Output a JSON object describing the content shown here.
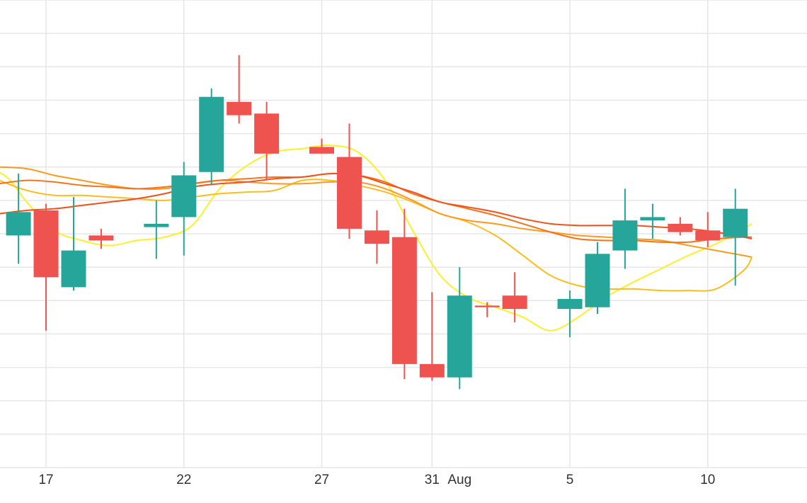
{
  "chart_data": {
    "type": "candlestick",
    "title": "",
    "xlabel": "",
    "ylabel": "",
    "grid": true,
    "legend": "none",
    "x_ticks": [
      {
        "label": "17",
        "day": 17
      },
      {
        "label": "22",
        "day": 22
      },
      {
        "label": "27",
        "day": 27
      },
      {
        "label": "31",
        "day": 31
      },
      {
        "label": "Aug",
        "day": 32
      },
      {
        "label": "5",
        "day": 36
      },
      {
        "label": "10",
        "day": 41
      }
    ],
    "xlim": [
      15.33,
      44.6
    ],
    "ylim": [
      0,
      14
    ],
    "candles": [
      {
        "day": 16,
        "open": 6.95,
        "high": 8.8,
        "low": 6.1,
        "close": 7.65
      },
      {
        "day": 17,
        "open": 7.7,
        "high": 7.9,
        "low": 4.1,
        "close": 5.7
      },
      {
        "day": 18,
        "open": 5.4,
        "high": 8.1,
        "low": 5.3,
        "close": 6.5
      },
      {
        "day": 19,
        "open": 6.95,
        "high": 7.15,
        "low": 6.55,
        "close": 6.8
      },
      {
        "day": 21,
        "open": 7.2,
        "high": 8.0,
        "low": 6.25,
        "close": 7.3
      },
      {
        "day": 22,
        "open": 7.5,
        "high": 9.15,
        "low": 6.35,
        "close": 8.75
      },
      {
        "day": 23,
        "open": 8.85,
        "high": 11.35,
        "low": 8.45,
        "close": 11.1
      },
      {
        "day": 24,
        "open": 10.95,
        "high": 12.35,
        "low": 10.3,
        "close": 10.55
      },
      {
        "day": 25,
        "open": 10.6,
        "high": 10.95,
        "low": 8.6,
        "close": 9.4
      },
      {
        "day": 27,
        "open": 9.6,
        "high": 9.85,
        "low": 9.4,
        "close": 9.4
      },
      {
        "day": 28,
        "open": 9.3,
        "high": 10.3,
        "low": 6.85,
        "close": 7.15
      },
      {
        "day": 29,
        "open": 7.1,
        "high": 7.7,
        "low": 6.1,
        "close": 6.7
      },
      {
        "day": 30,
        "open": 6.9,
        "high": 7.75,
        "low": 2.65,
        "close": 3.1
      },
      {
        "day": 31,
        "open": 3.1,
        "high": 5.25,
        "low": 2.6,
        "close": 2.7
      },
      {
        "day": 32,
        "open": 2.7,
        "high": 6.0,
        "low": 2.35,
        "close": 5.15
      },
      {
        "day": 33,
        "open": 4.85,
        "high": 4.95,
        "low": 4.5,
        "close": 4.8
      },
      {
        "day": 34,
        "open": 5.15,
        "high": 5.85,
        "low": 4.35,
        "close": 4.75
      },
      {
        "day": 36,
        "open": 4.75,
        "high": 5.3,
        "low": 3.9,
        "close": 5.05
      },
      {
        "day": 37,
        "open": 4.8,
        "high": 6.75,
        "low": 4.6,
        "close": 6.4
      },
      {
        "day": 38,
        "open": 6.5,
        "high": 8.35,
        "low": 5.95,
        "close": 7.4
      },
      {
        "day": 39,
        "open": 7.4,
        "high": 7.9,
        "low": 6.85,
        "close": 7.5
      },
      {
        "day": 40,
        "open": 7.3,
        "high": 7.5,
        "low": 6.95,
        "close": 7.05
      },
      {
        "day": 41,
        "open": 7.1,
        "high": 7.65,
        "low": 6.6,
        "close": 6.8
      },
      {
        "day": 42,
        "open": 6.9,
        "high": 8.35,
        "low": 5.45,
        "close": 7.75
      }
    ],
    "series": [
      {
        "color": "#ffee2a",
        "points": [
          [
            15.3,
            8.85
          ],
          [
            15.7,
            8.6
          ],
          [
            16.3,
            7.95
          ],
          [
            17.3,
            7.1
          ],
          [
            18.3,
            6.8
          ],
          [
            19.3,
            6.65
          ],
          [
            20.3,
            6.8
          ],
          [
            21.3,
            6.9
          ],
          [
            22.3,
            7.25
          ],
          [
            23.3,
            8.35
          ],
          [
            24.3,
            9.05
          ],
          [
            25.3,
            9.45
          ],
          [
            26.3,
            9.55
          ],
          [
            27.3,
            9.65
          ],
          [
            28.3,
            9.45
          ],
          [
            29.3,
            8.6
          ],
          [
            30.3,
            7.1
          ],
          [
            31.3,
            5.75
          ],
          [
            32.3,
            5.1
          ],
          [
            33.3,
            4.8
          ],
          [
            34.3,
            4.5
          ],
          [
            35.3,
            4.1
          ],
          [
            36.3,
            4.5
          ],
          [
            37.3,
            5.1
          ],
          [
            38.3,
            5.55
          ],
          [
            39.3,
            5.95
          ],
          [
            40.3,
            6.35
          ],
          [
            41.3,
            6.7
          ],
          [
            42.3,
            7.15
          ],
          [
            42.6,
            7.3
          ]
        ]
      },
      {
        "color": "#fbbd1e",
        "points": [
          [
            15.3,
            8.6
          ],
          [
            16.3,
            8.3
          ],
          [
            17.3,
            8.15
          ],
          [
            18.3,
            8.15
          ],
          [
            19.3,
            8.1
          ],
          [
            20.3,
            8.05
          ],
          [
            21.3,
            8.0
          ],
          [
            22.3,
            8.1
          ],
          [
            23.3,
            8.2
          ],
          [
            24.3,
            8.25
          ],
          [
            25.3,
            8.3
          ],
          [
            26.3,
            8.6
          ],
          [
            27.3,
            8.6
          ],
          [
            28.3,
            8.45
          ],
          [
            29.3,
            8.25
          ],
          [
            30.3,
            7.95
          ],
          [
            31.3,
            7.6
          ],
          [
            32.3,
            7.35
          ],
          [
            33.3,
            6.95
          ],
          [
            34.3,
            6.35
          ],
          [
            35.3,
            5.75
          ],
          [
            36.3,
            5.45
          ],
          [
            37.3,
            5.35
          ],
          [
            38.3,
            5.35
          ],
          [
            39.3,
            5.3
          ],
          [
            40.3,
            5.3
          ],
          [
            41.3,
            5.35
          ],
          [
            42.3,
            5.9
          ],
          [
            42.6,
            6.3
          ]
        ]
      },
      {
        "color": "#fb9a1e",
        "points": [
          [
            15.3,
            9.0
          ],
          [
            16.3,
            8.95
          ],
          [
            17.3,
            8.75
          ],
          [
            18.3,
            8.6
          ],
          [
            19.3,
            8.45
          ],
          [
            20.3,
            8.35
          ],
          [
            21.3,
            8.35
          ],
          [
            22.3,
            8.5
          ],
          [
            23.3,
            8.6
          ],
          [
            24.3,
            8.55
          ],
          [
            25.3,
            8.5
          ],
          [
            26.3,
            8.5
          ],
          [
            27.3,
            8.55
          ],
          [
            28.3,
            8.55
          ],
          [
            29.3,
            8.35
          ],
          [
            30.3,
            8.0
          ],
          [
            31.3,
            7.6
          ],
          [
            32.3,
            7.4
          ],
          [
            33.3,
            7.3
          ],
          [
            34.3,
            7.15
          ],
          [
            35.3,
            7.05
          ],
          [
            36.3,
            6.95
          ],
          [
            37.3,
            6.9
          ],
          [
            38.3,
            6.85
          ],
          [
            39.3,
            6.8
          ],
          [
            40.3,
            6.65
          ],
          [
            41.3,
            6.5
          ],
          [
            42.3,
            6.35
          ],
          [
            42.6,
            6.3
          ]
        ]
      },
      {
        "color": "#f7721a",
        "points": [
          [
            15.3,
            8.5
          ],
          [
            16.3,
            8.6
          ],
          [
            17.3,
            8.55
          ],
          [
            18.3,
            8.45
          ],
          [
            19.3,
            8.4
          ],
          [
            20.3,
            8.35
          ],
          [
            21.3,
            8.4
          ],
          [
            22.3,
            8.5
          ],
          [
            23.3,
            8.6
          ],
          [
            24.3,
            8.65
          ],
          [
            25.3,
            8.7
          ],
          [
            26.3,
            8.7
          ],
          [
            27.3,
            8.8
          ],
          [
            28.3,
            8.75
          ],
          [
            29.3,
            8.55
          ],
          [
            30.3,
            8.2
          ],
          [
            31.3,
            7.95
          ],
          [
            32.3,
            7.75
          ],
          [
            33.3,
            7.55
          ],
          [
            34.3,
            7.3
          ],
          [
            35.3,
            7.05
          ],
          [
            36.3,
            6.85
          ],
          [
            37.3,
            6.8
          ],
          [
            38.3,
            6.8
          ],
          [
            39.3,
            6.75
          ],
          [
            40.3,
            6.75
          ],
          [
            41.3,
            6.85
          ],
          [
            42.3,
            6.9
          ],
          [
            42.6,
            6.9
          ]
        ]
      },
      {
        "color": "#f1521c",
        "points": [
          [
            15.3,
            7.6
          ],
          [
            16.3,
            7.7
          ],
          [
            17.3,
            7.75
          ],
          [
            18.3,
            7.85
          ],
          [
            19.3,
            7.95
          ],
          [
            20.3,
            8.05
          ],
          [
            21.3,
            8.2
          ],
          [
            22.3,
            8.4
          ],
          [
            23.3,
            8.5
          ],
          [
            24.3,
            8.55
          ],
          [
            25.3,
            8.65
          ],
          [
            26.3,
            8.7
          ],
          [
            27.3,
            8.8
          ],
          [
            28.3,
            8.75
          ],
          [
            29.3,
            8.5
          ],
          [
            30.3,
            8.25
          ],
          [
            31.3,
            7.95
          ],
          [
            32.3,
            7.8
          ],
          [
            33.3,
            7.65
          ],
          [
            34.3,
            7.45
          ],
          [
            35.3,
            7.3
          ],
          [
            36.3,
            7.25
          ],
          [
            37.3,
            7.25
          ],
          [
            38.3,
            7.25
          ],
          [
            39.3,
            7.2
          ],
          [
            40.3,
            7.15
          ],
          [
            41.3,
            7.05
          ],
          [
            42.3,
            6.9
          ],
          [
            42.6,
            6.85
          ]
        ]
      }
    ],
    "colors": {
      "up": "#26a69a",
      "down": "#ef5350",
      "grid": "#e6e6e6",
      "background": "#ffffff"
    }
  }
}
